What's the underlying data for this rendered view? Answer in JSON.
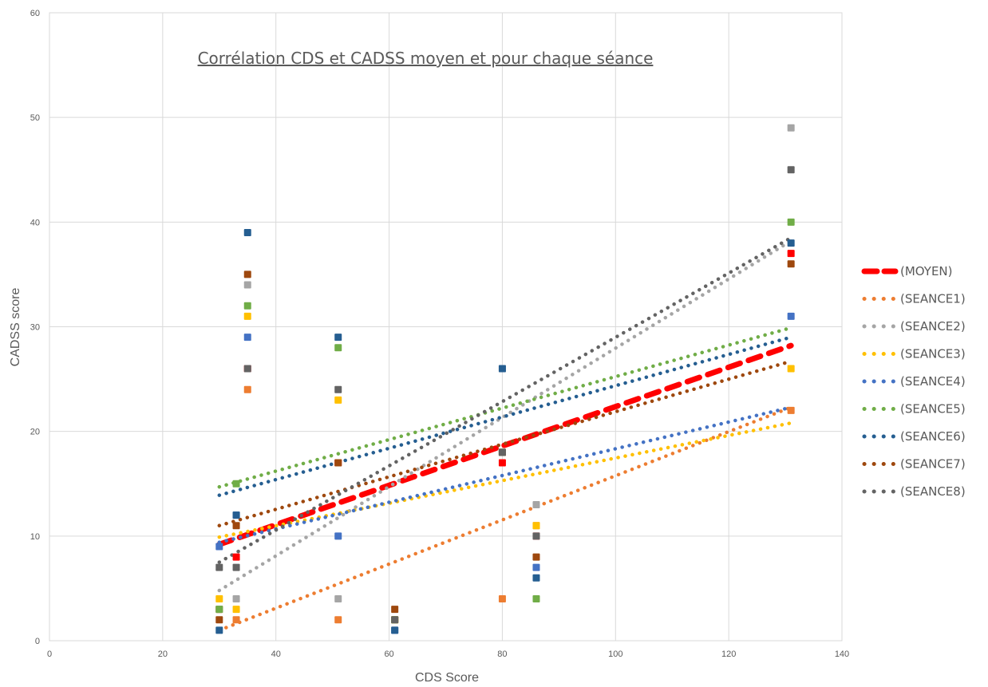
{
  "chart_data": {
    "type": "scatter",
    "title": "Corrélation CDS et CADSS moyen et pour chaque séance",
    "xlabel": "CDS Score",
    "ylabel": "CADSS score",
    "xlim": [
      0,
      140
    ],
    "ylim": [
      0,
      60
    ],
    "xticks": [
      0,
      20,
      40,
      60,
      80,
      100,
      120,
      140
    ],
    "yticks": [
      0,
      10,
      20,
      30,
      40,
      50,
      60
    ],
    "grid": true,
    "legend_position": "right",
    "x": [
      30,
      33,
      35,
      51,
      61,
      80,
      86,
      131
    ],
    "series": [
      {
        "name": "MOYEN",
        "color": "#ff0000",
        "values": [
          3,
          8,
          26,
          17,
          2,
          17,
          10,
          37
        ],
        "trend": [
          9.2,
          28.2
        ]
      },
      {
        "name": "SEANCE1",
        "color": "#ed7d31",
        "values": [
          3,
          2,
          24,
          2,
          2,
          4,
          11,
          22
        ],
        "trend": [
          1.0,
          22.3
        ]
      },
      {
        "name": "SEANCE2",
        "color": "#a5a5a5",
        "values": [
          3,
          4,
          34,
          4,
          2,
          26,
          13,
          49
        ],
        "trend": [
          4.8,
          38.2
        ]
      },
      {
        "name": "SEANCE3",
        "color": "#ffc000",
        "values": [
          4,
          3,
          31,
          23,
          2,
          18,
          11,
          26
        ],
        "trend": [
          9.9,
          20.8
        ]
      },
      {
        "name": "SEANCE4",
        "color": "#4472c4",
        "values": [
          9,
          12,
          29,
          10,
          1,
          18,
          7,
          31
        ],
        "trend": [
          9.4,
          22.3
        ]
      },
      {
        "name": "SEANCE5",
        "color": "#70ad47",
        "values": [
          3,
          15,
          32,
          28,
          2,
          18,
          4,
          40
        ],
        "trend": [
          14.7,
          29.9
        ]
      },
      {
        "name": "SEANCE6",
        "color": "#255e91",
        "values": [
          1,
          12,
          39,
          29,
          1,
          26,
          6,
          38
        ],
        "trend": [
          13.9,
          29.0
        ]
      },
      {
        "name": "SEANCE7",
        "color": "#9e480e",
        "values": [
          2,
          11,
          35,
          17,
          3,
          18,
          8,
          36
        ],
        "trend": [
          11.0,
          26.7
        ]
      },
      {
        "name": "SEANCE8",
        "color": "#636363",
        "values": [
          7,
          7,
          26,
          24,
          2,
          18,
          10,
          45
        ],
        "trend": [
          7.5,
          38.5
        ]
      }
    ]
  }
}
